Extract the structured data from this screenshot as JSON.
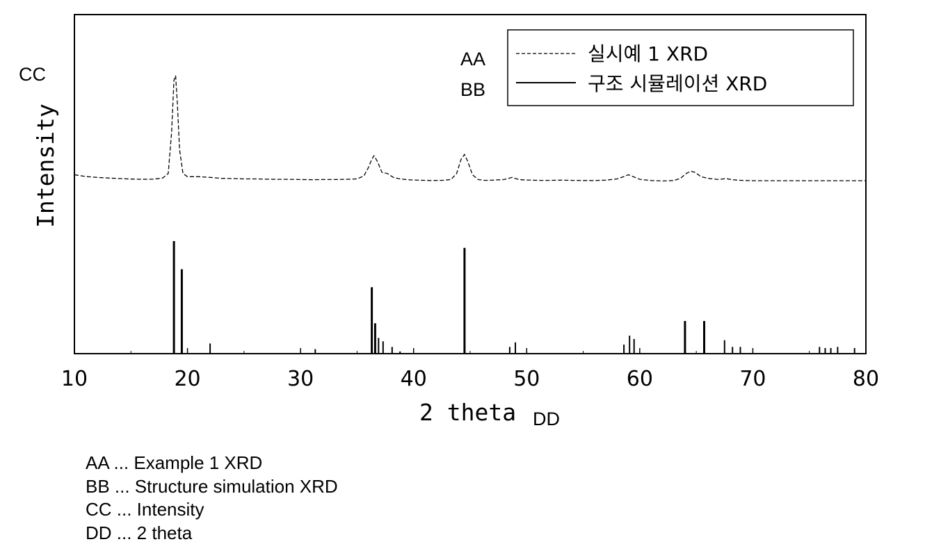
{
  "chart_data": {
    "type": "line",
    "xlabel": "2 theta",
    "ylabel": "Intensity",
    "xlim": [
      10,
      80
    ],
    "xticks": [
      10,
      20,
      30,
      40,
      50,
      60,
      70,
      80
    ],
    "legend_position": "top-right",
    "series": [
      {
        "name": "실시예 1 XRD",
        "marker_label": "AA",
        "style": "dashed",
        "x": [
          10,
          11,
          12,
          13,
          14,
          15,
          16,
          17,
          17.8,
          18.3,
          18.6,
          18.8,
          18.95,
          19.1,
          19.3,
          19.6,
          20,
          21,
          22,
          23,
          24,
          25,
          26,
          27,
          28,
          29,
          30,
          31,
          32,
          33,
          34,
          35,
          35.6,
          36,
          36.3,
          36.5,
          36.8,
          37.2,
          37.7,
          38.2,
          38.8,
          39.5,
          40.5,
          41.5,
          42.5,
          43.3,
          43.8,
          44.2,
          44.5,
          44.8,
          45.2,
          45.7,
          46.3,
          47,
          48,
          48.7,
          49.3,
          50,
          51,
          52,
          53,
          54,
          55,
          56,
          57,
          58,
          58.6,
          59,
          59.4,
          60,
          61,
          62,
          63,
          63.6,
          64.1,
          64.5,
          64.9,
          65.4,
          66,
          67,
          67.6,
          68.2,
          69,
          70,
          72,
          74,
          76,
          78,
          80
        ],
        "y": [
          9.0,
          7.5,
          6.8,
          6.3,
          5.8,
          5.4,
          5.2,
          5.3,
          6.2,
          10,
          45,
          88,
          92,
          70,
          30,
          10,
          7.4,
          7.4,
          6.8,
          6.0,
          5.8,
          5.5,
          5.5,
          5.3,
          5.2,
          5.2,
          5.0,
          4.9,
          5.0,
          5.0,
          5.2,
          5.5,
          8,
          15,
          22,
          25,
          20,
          11,
          10,
          6.8,
          5.5,
          4.8,
          4.4,
          4.2,
          4.3,
          5.0,
          10,
          22,
          26,
          20,
          9,
          5.0,
          4.3,
          4.5,
          5.0,
          6.8,
          5.0,
          4.6,
          4.3,
          4.3,
          4.5,
          4.3,
          4.2,
          4.2,
          4.5,
          5.5,
          7.5,
          9,
          7.5,
          5.2,
          4.2,
          3.8,
          4.1,
          6,
          10,
          12,
          11,
          7.5,
          6.0,
          5.0,
          5.8,
          4.8,
          4.3,
          4.0,
          4.0,
          4.0,
          4.0,
          4.0,
          4.0
        ]
      },
      {
        "name": "구조 시뮬레이션 XRD",
        "marker_label": "BB",
        "style": "solid",
        "x": [
          18.8,
          19.5,
          22.0,
          31.3,
          36.3,
          36.6,
          36.9,
          37.3,
          38.1,
          38.8,
          44.5,
          48.5,
          49.0,
          58.6,
          59.1,
          59.5,
          64.0,
          65.7,
          67.5,
          68.2,
          68.9,
          75.9,
          76.4,
          76.9,
          77.5,
          79.0
        ],
        "y": [
          100,
          75,
          9,
          4,
          59,
          27,
          14,
          11,
          6,
          2,
          94,
          6,
          10,
          8,
          16,
          13,
          29,
          29,
          12,
          6,
          6,
          6,
          5,
          5,
          6,
          5
        ]
      }
    ]
  },
  "markers": {
    "ylabel_marker": "CC",
    "xlabel_marker": "DD"
  },
  "footnotes": [
    "AA ... Example 1 XRD",
    "BB ... Structure simulation XRD",
    "CC ... Intensity",
    "DD ... 2 theta"
  ]
}
